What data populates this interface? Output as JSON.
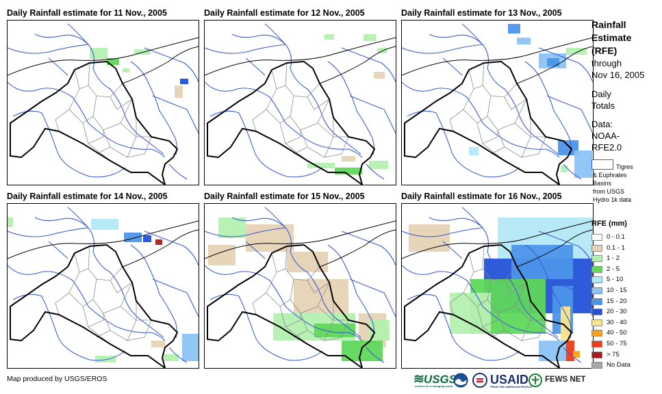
{
  "panels": [
    {
      "title": "Daily Rainfall estimate for 11 Nov., 2005"
    },
    {
      "title": "Daily Rainfall estimate for 12 Nov., 2005"
    },
    {
      "title": "Daily Rainfall estimate for 13 Nov., 2005"
    },
    {
      "title": "Daily Rainfall estimate for 14 Nov., 2005"
    },
    {
      "title": "Daily Rainfall estimate for 15 Nov., 2005"
    },
    {
      "title": "Daily Rainfall estimate for 16 Nov., 2005"
    }
  ],
  "side": {
    "title1": "Rainfall",
    "title2": "Estimate",
    "title3": "(RFE)",
    "through": "through",
    "date": "Nov 16, 2005",
    "daily": "Daily",
    "totals": "Totals",
    "data_label": "Data:",
    "noaa": "NOAA-",
    "rfe": "RFE2.0",
    "basins1": "Tigres",
    "basins2": "& Euphrates",
    "basins3": "Basins",
    "basins4": "from USGS",
    "basins5": "Hydro 1k data"
  },
  "legend": {
    "title": "RFE (mm)",
    "items": [
      {
        "label": "0 - 0.1",
        "color": "#ffffff"
      },
      {
        "label": "0.1 - 1",
        "color": "#e5d3b5"
      },
      {
        "label": "1 - 2",
        "color": "#b4f0b0"
      },
      {
        "label": "2 - 5",
        "color": "#5fd85c"
      },
      {
        "label": "5 - 10",
        "color": "#b3e8f6"
      },
      {
        "label": "10 - 15",
        "color": "#8cc3f5"
      },
      {
        "label": "15 - 20",
        "color": "#4c95ea"
      },
      {
        "label": "20 - 30",
        "color": "#2352d8"
      },
      {
        "label": "30 - 40",
        "color": "#fbe58a"
      },
      {
        "label": "40 - 50",
        "color": "#f5a31c"
      },
      {
        "label": "50 - 75",
        "color": "#ee3b17"
      },
      {
        "label": "> 75",
        "color": "#a61c1c"
      },
      {
        "label": "No Data",
        "color": "#a8a8a8"
      }
    ]
  },
  "footer": {
    "credit": "Map produced by USGS/EROS",
    "usgs": "USGS",
    "usgs_tag": "science for a changing world",
    "usaid": "USAID",
    "usaid_tag": "FROM THE AMERICAN PEOPLE",
    "fews": "FEWS NET"
  },
  "colors": {
    "border": "#000000",
    "rivers": "#3a5bd9",
    "provinces": "#8c8c8c"
  }
}
